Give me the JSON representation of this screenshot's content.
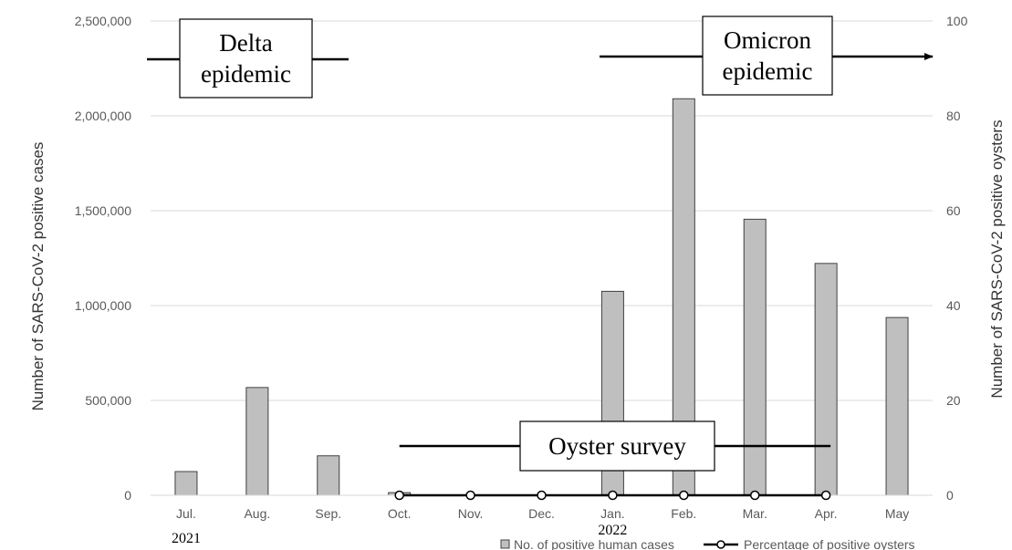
{
  "chart_data": {
    "type": "bar",
    "categories": [
      "Jul.",
      "Aug.",
      "Sep.",
      "Oct.",
      "Nov.",
      "Dec.",
      "Jan.",
      "Feb.",
      "Mar.",
      "Apr.",
      "May"
    ],
    "years": [
      {
        "label": "2021",
        "category": "Jul."
      },
      {
        "label": "2022",
        "category": "Jan."
      }
    ],
    "series": [
      {
        "name": "No. of positive human cases",
        "type": "bar",
        "axis": "left",
        "color": "#bfbfbf",
        "values": [
          125000,
          568000,
          208000,
          14000,
          null,
          null,
          1075000,
          2090000,
          1455000,
          1222000,
          937000
        ]
      },
      {
        "name": "Percentage of positive oysters",
        "type": "line",
        "axis": "right",
        "color": "#000000",
        "values": [
          null,
          null,
          null,
          0,
          0,
          0,
          0,
          0,
          0,
          0,
          null
        ]
      }
    ],
    "ylabel": "Number of SARS-CoV-2 positive cases",
    "y2label": "Number of SARS-CoV-2 positive oysters",
    "ylim": [
      0,
      2500000
    ],
    "y2lim": [
      0,
      100
    ],
    "yticks": [
      "0",
      "500,000",
      "1,000,000",
      "1,500,000",
      "2,000,000",
      "2,500,000"
    ],
    "y2ticks": [
      "0",
      "20",
      "40",
      "60",
      "80",
      "100"
    ],
    "grid": true,
    "legend_position": "bottom-right",
    "annotations": [
      {
        "id": "delta",
        "lines": [
          "Delta",
          "epidemic"
        ],
        "from": "Jul.",
        "to": "Aug."
      },
      {
        "id": "omicron",
        "lines": [
          "Omicron",
          "epidemic"
        ],
        "from": "Jan.",
        "to": "May",
        "arrow": true
      },
      {
        "id": "oyster",
        "lines": [
          "Oyster survey"
        ],
        "from": "Oct.",
        "to": "Apr."
      }
    ]
  }
}
